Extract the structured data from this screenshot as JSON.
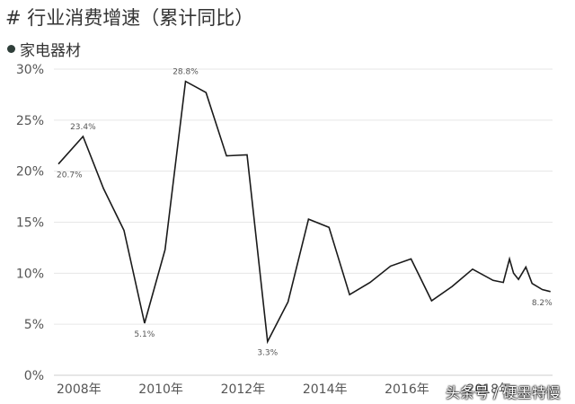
{
  "header": {
    "title": "# 行业消费增速（累计同比）"
  },
  "legend": {
    "label": "家电器材",
    "dot_color": "#2f3f3a"
  },
  "watermark": "头条号 / 硬墨特慢",
  "chart_data": {
    "type": "line",
    "title": "# 行业消费增速（累计同比）",
    "xlabel": "",
    "ylabel": "",
    "ylim": [
      0,
      30
    ],
    "xlim": [
      2007.9,
      2019.95
    ],
    "y_ticks": [
      {
        "value": 0,
        "label": "0%"
      },
      {
        "value": 5,
        "label": "5%"
      },
      {
        "value": 10,
        "label": "10%"
      },
      {
        "value": 15,
        "label": "15%"
      },
      {
        "value": 20,
        "label": "20%"
      },
      {
        "value": 25,
        "label": "25%"
      },
      {
        "value": 30,
        "label": "30%"
      }
    ],
    "x_ticks": [
      {
        "value": 2008.4,
        "label": "2008年"
      },
      {
        "value": 2010.4,
        "label": "2010年"
      },
      {
        "value": 2012.4,
        "label": "2012年"
      },
      {
        "value": 2014.4,
        "label": "2014年"
      },
      {
        "value": 2016.4,
        "label": "2016年"
      },
      {
        "value": 2018.4,
        "label": "2018年"
      }
    ],
    "grid": true,
    "line_color": "#1a1a1a",
    "series": [
      {
        "name": "家电器材",
        "points": [
          {
            "x": 2007.9,
            "y": 20.7,
            "label": "20.7%",
            "label_pos": "below"
          },
          {
            "x": 2008.5,
            "y": 23.4,
            "label": "23.4%",
            "label_pos": "above"
          },
          {
            "x": 2009.0,
            "y": 18.3
          },
          {
            "x": 2009.5,
            "y": 14.2
          },
          {
            "x": 2010.0,
            "y": 5.1,
            "label": "5.1%",
            "label_pos": "below"
          },
          {
            "x": 2010.5,
            "y": 12.3
          },
          {
            "x": 2011.0,
            "y": 28.8,
            "label": "28.8%",
            "label_pos": "above"
          },
          {
            "x": 2011.5,
            "y": 27.7
          },
          {
            "x": 2012.0,
            "y": 21.5
          },
          {
            "x": 2012.5,
            "y": 21.6
          },
          {
            "x": 2013.0,
            "y": 3.3,
            "label": "3.3%",
            "label_pos": "below"
          },
          {
            "x": 2013.5,
            "y": 7.2
          },
          {
            "x": 2014.0,
            "y": 15.3
          },
          {
            "x": 2014.5,
            "y": 14.5
          },
          {
            "x": 2015.0,
            "y": 7.9
          },
          {
            "x": 2015.5,
            "y": 9.1
          },
          {
            "x": 2016.0,
            "y": 10.7
          },
          {
            "x": 2016.5,
            "y": 11.4
          },
          {
            "x": 2017.0,
            "y": 7.3
          },
          {
            "x": 2017.5,
            "y": 8.7
          },
          {
            "x": 2018.0,
            "y": 10.4
          },
          {
            "x": 2018.5,
            "y": 9.3
          },
          {
            "x": 2018.75,
            "y": 9.1
          },
          {
            "x": 2018.9,
            "y": 11.4
          },
          {
            "x": 2019.0,
            "y": 10.0
          },
          {
            "x": 2019.12,
            "y": 9.4
          },
          {
            "x": 2019.3,
            "y": 10.6
          },
          {
            "x": 2019.45,
            "y": 9.0
          },
          {
            "x": 2019.7,
            "y": 8.4
          },
          {
            "x": 2019.9,
            "y": 8.2,
            "label": "8.2%",
            "label_pos": "below"
          }
        ]
      }
    ]
  }
}
